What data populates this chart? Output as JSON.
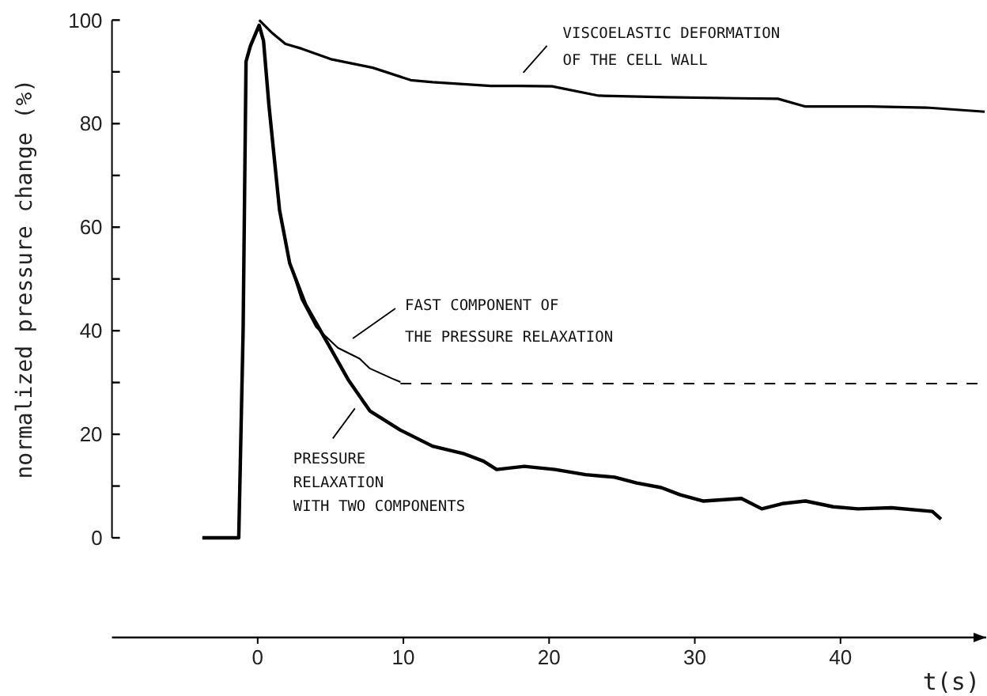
{
  "chart_data": {
    "type": "line",
    "ylabel": "normalized pressure change (%)",
    "xlabel": "t(s)",
    "xlim": [
      -10,
      50
    ],
    "xticks": [
      0,
      10,
      20,
      30,
      40
    ],
    "ylim": [
      0,
      100
    ],
    "yticks": [
      0,
      {
        "value": 10,
        "label": null
      },
      20,
      {
        "value": 30,
        "label": null
      },
      40,
      {
        "value": 50,
        "label": null
      },
      60,
      {
        "value": 70,
        "label": null
      },
      80,
      {
        "value": 90,
        "label": null
      },
      100
    ],
    "grid": false,
    "marker": "none",
    "series": [
      {
        "color": "#000000",
        "x": [
          0.1,
          1.0,
          1.9,
          3.0,
          5.1,
          7.9,
          10.5,
          12.0,
          16.0,
          17.9,
          20.2,
          23.4,
          28.0,
          33.0,
          35.7,
          37.6,
          42.0,
          45.9,
          49.9
        ],
        "values": [
          100,
          97.5,
          95.4,
          94.5,
          92.4,
          90.8,
          88.4,
          88,
          87.3,
          87.3,
          87.2,
          85.4,
          85.1,
          84.9,
          84.8,
          83.3,
          83.3,
          83.1,
          82.3
        ]
      },
      {
        "color": "#000000",
        "x": [
          -3.8,
          -1.3,
          -1.0,
          -0.8,
          -0.5,
          0.1,
          0.4,
          0.77,
          1.5,
          2.2,
          3.3,
          4.8,
          6.2,
          7.7,
          9.8,
          12.0,
          14.2,
          15.5,
          16.4,
          18.3,
          20.4,
          22.5,
          24.5,
          26.0,
          27.7,
          29.0,
          30.6,
          33.2,
          34.6,
          36.0,
          37.6,
          39.5,
          41.2,
          43.5,
          46.3,
          46.9
        ],
        "values": [
          0,
          0,
          40,
          92,
          95,
          99,
          96,
          83.6,
          63.3,
          53,
          45,
          37.6,
          30.6,
          24.5,
          20.8,
          17.7,
          16.2,
          14.8,
          13.2,
          13.8,
          13.2,
          12.2,
          11.7,
          10.6,
          9.7,
          8.3,
          7.1,
          7.6,
          5.6,
          6.6,
          7.1,
          6.0,
          5.6,
          5.8,
          5.1,
          3.6
        ]
      },
      {
        "color": "#000000",
        "x": [
          2.2,
          3.0,
          4.0,
          5.5,
          7.0,
          7.7,
          9.2,
          9.8
        ],
        "values": [
          53,
          46,
          40.7,
          36.7,
          34.6,
          32.7,
          30.8,
          30.1
        ]
      },
      {
        "color": "#000000",
        "line_style": "dashed",
        "x": [
          9.8,
          49.4
        ],
        "values": [
          29.8,
          29.8
        ]
      }
    ],
    "annotations": [
      {
        "text": "VISCOELASTIC DEFORMATION\nOF THE CELL WALL",
        "x": 17.9,
        "y": 88
      },
      "FAST COMPONENT OF\nTHE PRESSURE RELAXATION",
      {
        "text": "PRESSURE\nRELAXATION\nWITH TWO COMPONENTS",
        "x": 7.0,
        "y": 25
      }
    ]
  }
}
